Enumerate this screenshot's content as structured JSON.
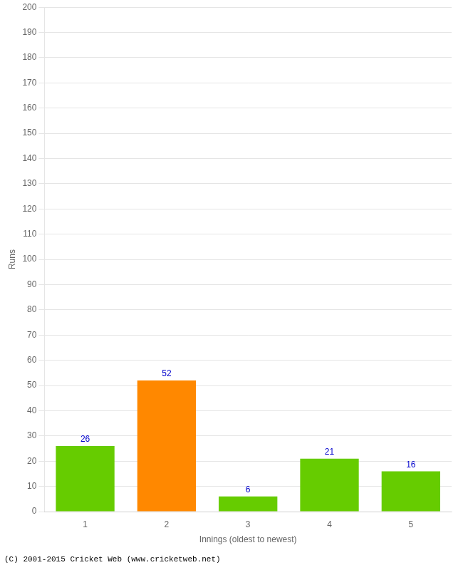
{
  "chart_data": {
    "type": "bar",
    "categories": [
      "1",
      "2",
      "3",
      "4",
      "5"
    ],
    "values": [
      26,
      52,
      6,
      21,
      16
    ],
    "colors": [
      "#66cc00",
      "#ff8800",
      "#66cc00",
      "#66cc00",
      "#66cc00"
    ],
    "xlabel": "Innings (oldest to newest)",
    "ylabel": "Runs",
    "ylim": [
      0,
      200
    ],
    "yticks": [
      0,
      10,
      20,
      30,
      40,
      50,
      60,
      70,
      80,
      90,
      100,
      110,
      120,
      130,
      140,
      150,
      160,
      170,
      180,
      190,
      200
    ],
    "grid": true,
    "data_labels": true,
    "footer": "(C) 2001-2015 Cricket Web (www.cricketweb.net)"
  }
}
